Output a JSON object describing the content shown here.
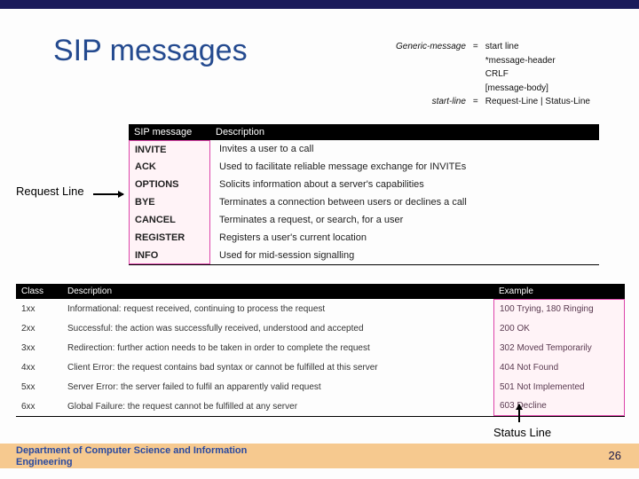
{
  "title": "SIP messages",
  "grammar": {
    "rows": [
      {
        "lhs": "Generic-message",
        "eq": "=",
        "rhs": [
          "start line",
          "*message-header",
          "CRLF",
          "[message-body]"
        ]
      },
      {
        "lhs": "start-line",
        "eq": "=",
        "rhs": [
          "Request-Line | Status-Line"
        ]
      }
    ]
  },
  "labels": {
    "request_line": "Request Line",
    "status_line": "Status Line"
  },
  "table1": {
    "headers": {
      "c1": "SIP message",
      "c2": "Description"
    },
    "rows": [
      {
        "msg": "INVITE",
        "desc": "Invites a user to a call"
      },
      {
        "msg": "ACK",
        "desc": "Used to facilitate reliable message exchange for INVITEs"
      },
      {
        "msg": "OPTIONS",
        "desc": "Solicits information about a server's capabilities"
      },
      {
        "msg": "BYE",
        "desc": "Terminates a connection between users or declines a call"
      },
      {
        "msg": "CANCEL",
        "desc": "Terminates a request, or search, for a user"
      },
      {
        "msg": "REGISTER",
        "desc": "Registers a user's current location"
      },
      {
        "msg": "INFO",
        "desc": "Used for mid-session signalling"
      }
    ]
  },
  "table2": {
    "headers": {
      "c1": "Class",
      "c2": "Description",
      "c3": "Example"
    },
    "rows": [
      {
        "cls": "1xx",
        "desc": "Informational: request received, continuing to process the request",
        "ex": "100 Trying, 180 Ringing"
      },
      {
        "cls": "2xx",
        "desc": "Successful: the action was successfully received, understood and accepted",
        "ex": "200 OK"
      },
      {
        "cls": "3xx",
        "desc": "Redirection: further action needs to be taken in order to complete the request",
        "ex": "302 Moved Temporarily"
      },
      {
        "cls": "4xx",
        "desc": "Client Error: the request contains bad syntax or cannot be fulfilled at this server",
        "ex": "404 Not Found"
      },
      {
        "cls": "5xx",
        "desc": "Server Error: the server failed to fulfil an apparently valid request",
        "ex": "501 Not Implemented"
      },
      {
        "cls": "6xx",
        "desc": "Global Failure: the request cannot be fulfilled at any server",
        "ex": "603 Decline"
      }
    ]
  },
  "footer": {
    "department": "Department of Computer Science and Information Engineering",
    "page": "26"
  },
  "colors": {
    "top_bar": "#1b1b5a",
    "title": "#244a8f",
    "table_header_bg": "#000000",
    "table_header_fg": "#ffffff",
    "highlight_bg": "#fff3f7",
    "highlight_border": "#dd44aa",
    "footer_bg": "#f6c98f",
    "footer_text": "#2a4aa0"
  }
}
